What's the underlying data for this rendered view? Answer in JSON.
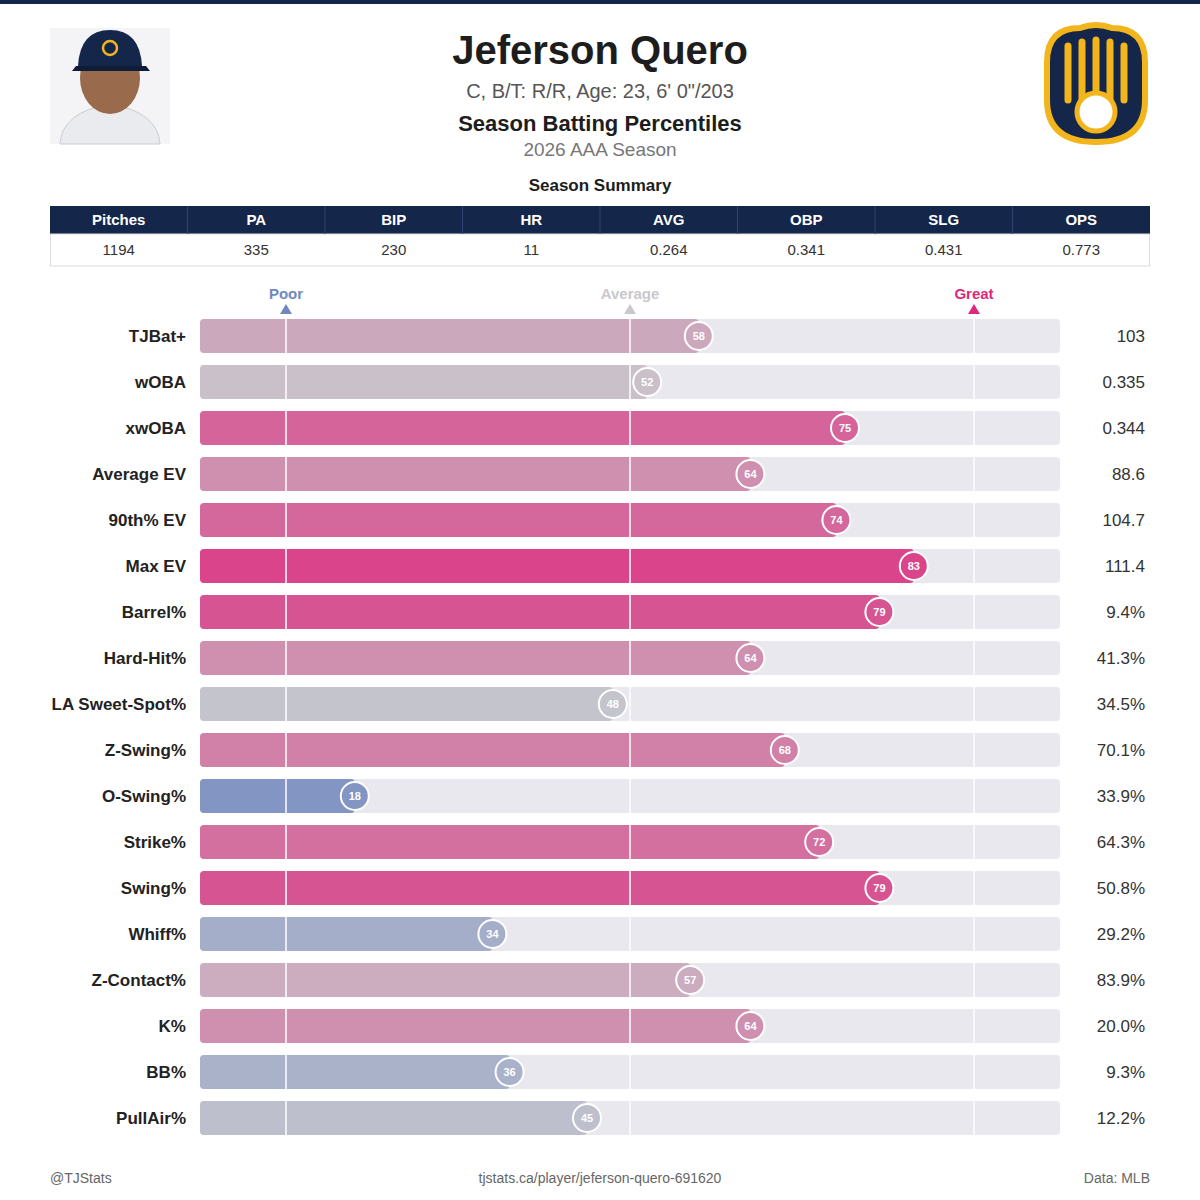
{
  "header": {
    "name": "Jeferson Quero",
    "info": "C, B/T: R/R, Age: 23, 6' 0\"/203",
    "subtitle": "Season Batting Percentiles",
    "season": "2026 AAA Season"
  },
  "summary": {
    "title": "Season Summary",
    "columns": [
      "Pitches",
      "PA",
      "BIP",
      "HR",
      "AVG",
      "OBP",
      "SLG",
      "OPS"
    ],
    "rows": [
      [
        "1194",
        "335",
        "230",
        "11",
        "0.264",
        "0.341",
        "0.431",
        "0.773"
      ]
    ]
  },
  "chart_data": {
    "type": "bar",
    "orientation": "horizontal",
    "data_labels": true,
    "categories": [
      "TJBat+",
      "wOBA",
      "xwOBA",
      "Average EV",
      "90th% EV",
      "Max EV",
      "Barrel%",
      "Hard-Hit%",
      "LA Sweet-Spot%",
      "Z-Swing%",
      "O-Swing%",
      "Strike%",
      "Swing%",
      "Whiff%",
      "Z-Contact%",
      "K%",
      "BB%",
      "PullAir%"
    ],
    "values": [
      58,
      52,
      75,
      64,
      74,
      83,
      79,
      64,
      48,
      68,
      18,
      72,
      79,
      34,
      57,
      64,
      36,
      45
    ],
    "stats": [
      "103",
      "0.335",
      "0.344",
      "88.6",
      "104.7",
      "111.4",
      "9.4%",
      "41.3%",
      "34.5%",
      "70.1%",
      "33.9%",
      "64.3%",
      "50.8%",
      "29.2%",
      "83.9%",
      "20.0%",
      "9.3%",
      "12.2%"
    ],
    "xlim": [
      0,
      100
    ],
    "xticks": [
      {
        "value": 10,
        "label": "Poor"
      },
      {
        "value": 50,
        "label": "Average"
      },
      {
        "value": 90,
        "label": "Great"
      }
    ],
    "grid": true
  },
  "footer": {
    "left": "@TJStats",
    "center": "tjstats.ca/player/jeferson-quero-691620",
    "right": "Data: MLB"
  }
}
